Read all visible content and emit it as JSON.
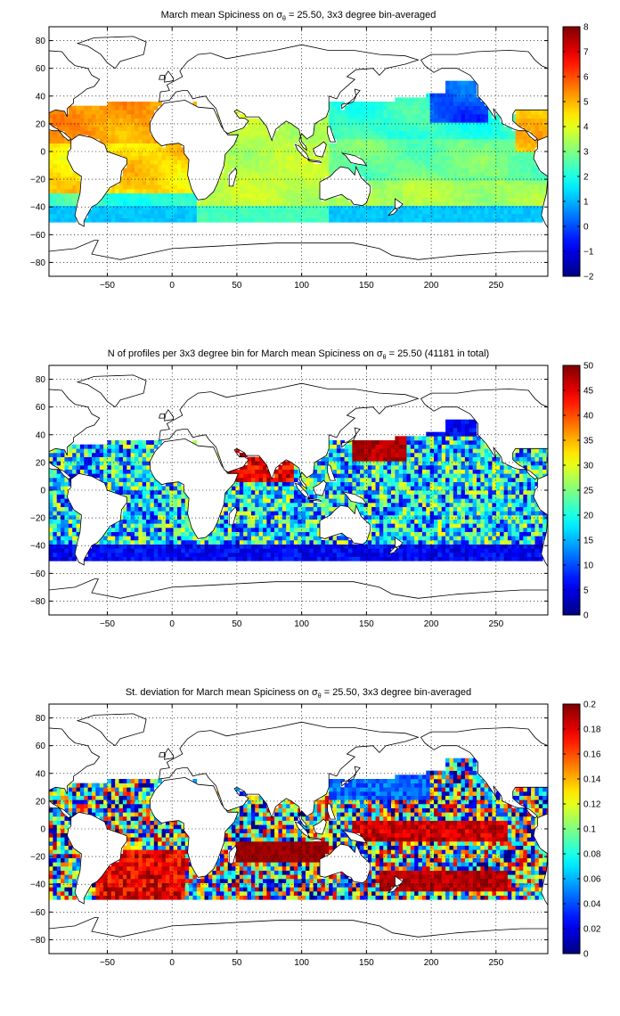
{
  "chart_data": [
    {
      "type": "heatmap",
      "title": "March mean Spiciness on σθ = 25.50, 3x3 degree bin-averaged",
      "title_parts": {
        "pre": "March mean Spiciness on ",
        "sym": "σ",
        "sub": "θ",
        "post": " = 25.50, 3x3 degree bin-averaged"
      },
      "xlim": [
        -95,
        290
      ],
      "ylim": [
        -90,
        90
      ],
      "xticks": [
        -50,
        0,
        50,
        100,
        150,
        200,
        250
      ],
      "yticks": [
        -80,
        -60,
        -40,
        -20,
        0,
        20,
        40,
        60,
        80
      ],
      "colorbar": {
        "min": -2,
        "max": 8,
        "ticks": [
          -2,
          -1,
          0,
          1,
          2,
          3,
          4,
          5,
          6,
          7,
          8
        ]
      },
      "colormap": "jet",
      "grid": true,
      "field": "spice"
    },
    {
      "type": "heatmap",
      "title": "N of profiles per 3x3 degree bin for March mean Spiciness on σθ = 25.50 (41181 in total)",
      "title_parts": {
        "pre": "N of profiles per 3x3 degree bin for March mean Spiciness on ",
        "sym": "σ",
        "sub": "θ",
        "post": " = 25.50 (41181 in total)"
      },
      "xlim": [
        -95,
        290
      ],
      "ylim": [
        -90,
        90
      ],
      "xticks": [
        -50,
        0,
        50,
        100,
        150,
        200,
        250
      ],
      "yticks": [
        -80,
        -60,
        -40,
        -20,
        0,
        20,
        40,
        60,
        80
      ],
      "colorbar": {
        "min": 0,
        "max": 50,
        "ticks": [
          0,
          5,
          10,
          15,
          20,
          25,
          30,
          35,
          40,
          45,
          50
        ]
      },
      "colormap": "jet",
      "grid": true,
      "field": "count"
    },
    {
      "type": "heatmap",
      "title": "St. deviation for March mean Spiciness on σθ = 25.50, 3x3 degree bin-averaged",
      "title_parts": {
        "pre": "St. deviation for March mean Spiciness on ",
        "sym": "σ",
        "sub": "θ",
        "post": " = 25.50, 3x3 degree bin-averaged"
      },
      "xlim": [
        -95,
        290
      ],
      "ylim": [
        -90,
        90
      ],
      "xticks": [
        -50,
        0,
        50,
        100,
        150,
        200,
        250
      ],
      "yticks": [
        -80,
        -60,
        -40,
        -20,
        0,
        20,
        40,
        60,
        80
      ],
      "colorbar": {
        "min": 0,
        "max": 0.2,
        "ticks": [
          0,
          0.02,
          0.04,
          0.06,
          0.08,
          0.1,
          0.12,
          0.14,
          0.16,
          0.18,
          0.2
        ]
      },
      "colormap": "jet",
      "grid": true,
      "field": "std"
    }
  ]
}
